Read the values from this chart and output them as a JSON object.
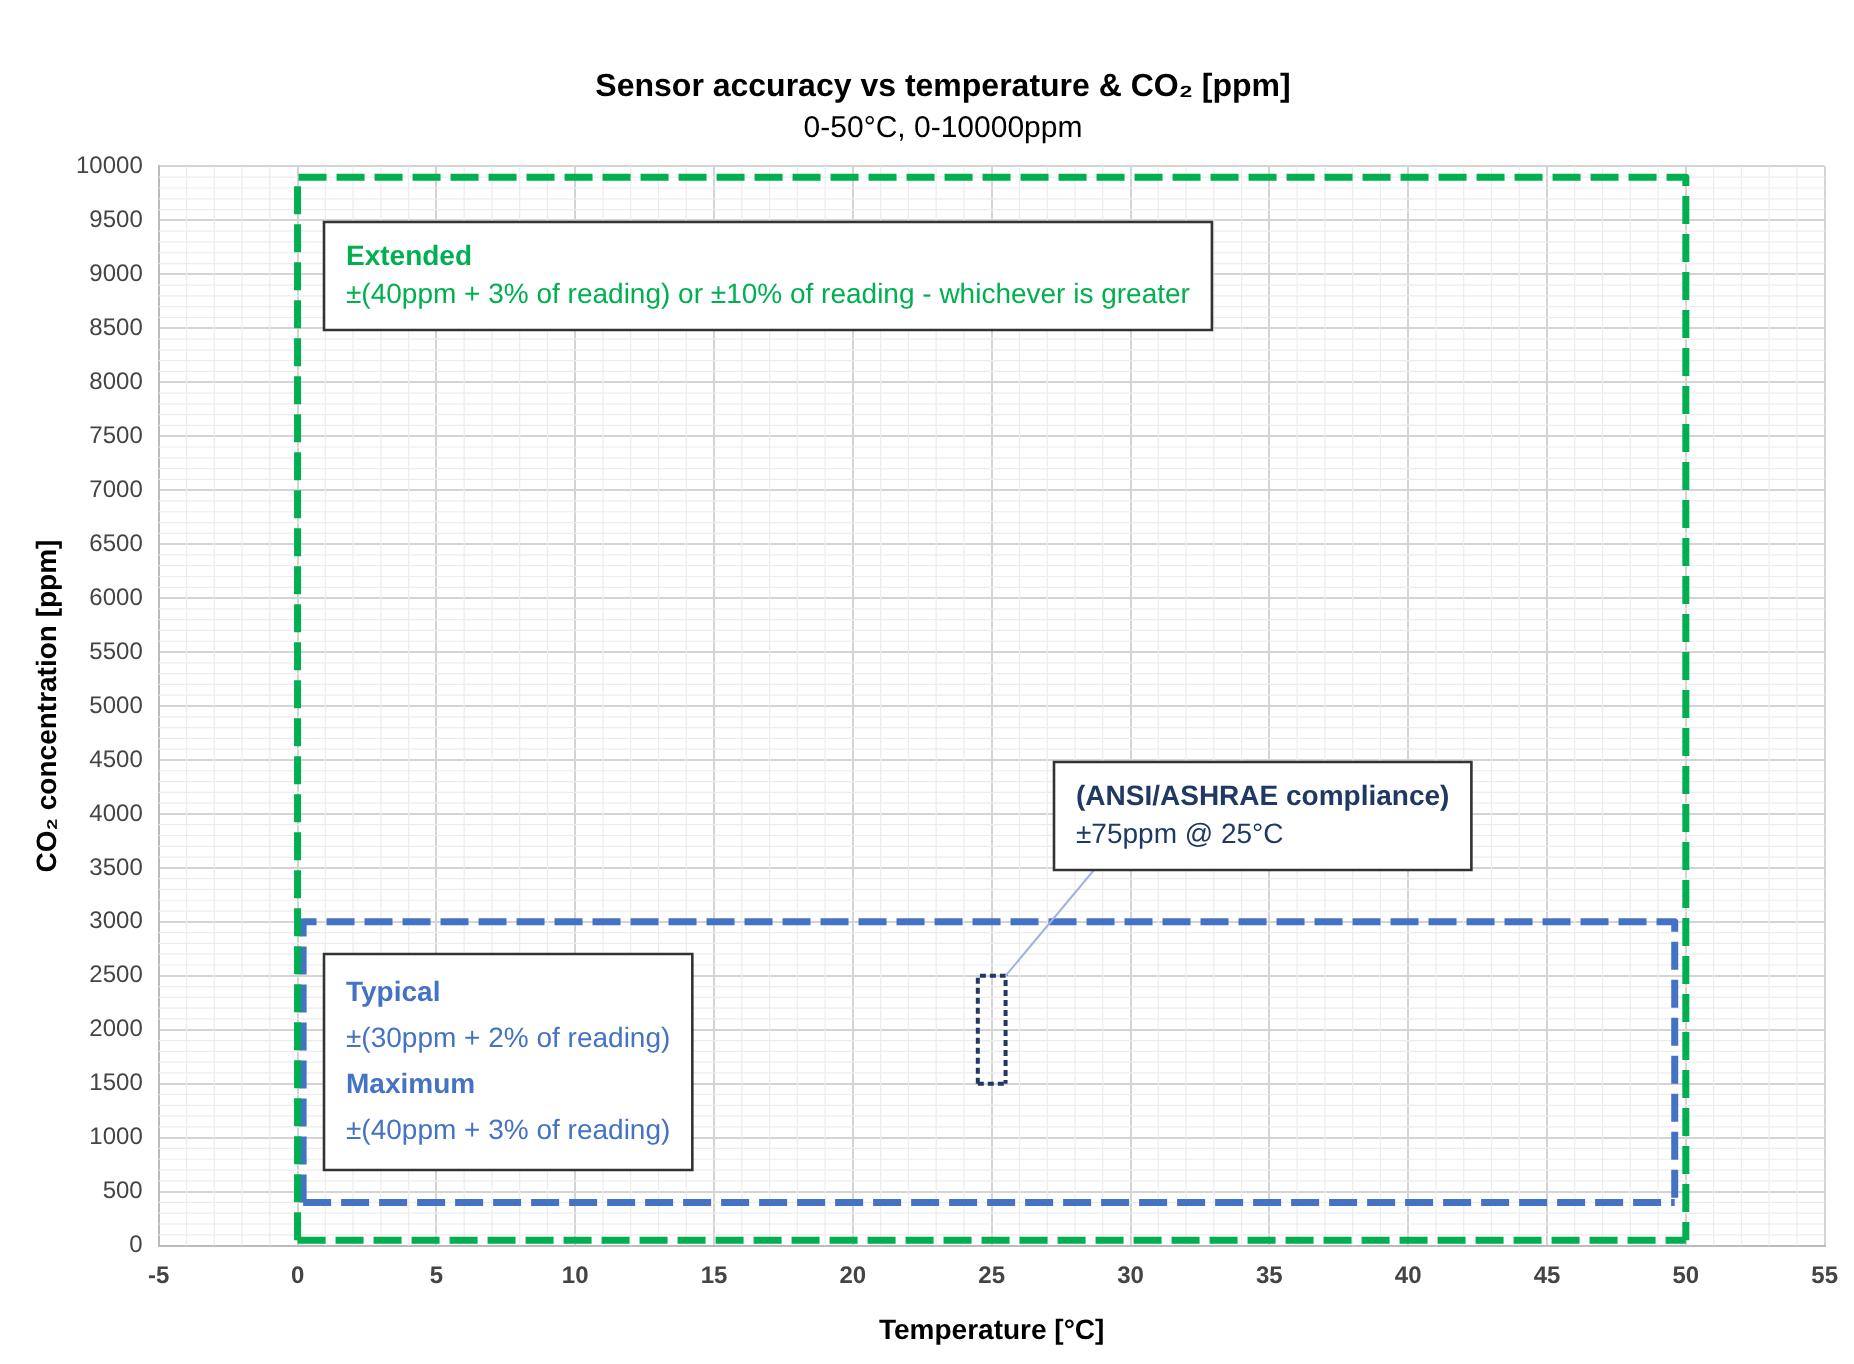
{
  "chart_data": {
    "type": "line",
    "title": "Sensor accuracy vs temperature & CO₂ [ppm]",
    "subtitle": "0-50°C, 0-10000ppm",
    "xlabel": "Temperature [°C]",
    "ylabel": "CO₂ concentration [ppm]",
    "xlim": [
      -5,
      55
    ],
    "xticks": [
      -5,
      0,
      5,
      10,
      15,
      20,
      25,
      30,
      35,
      40,
      45,
      50,
      55
    ],
    "ylim": [
      0,
      10000
    ],
    "yticks": [
      0,
      500,
      1000,
      1500,
      2000,
      2500,
      3000,
      3500,
      4000,
      4500,
      5000,
      5500,
      6000,
      6500,
      7000,
      7500,
      8000,
      8500,
      9000,
      9500,
      10000
    ],
    "grid": true,
    "legend": false,
    "marker": "none",
    "series": [
      {
        "color": "#00b050",
        "line_style": "dashed",
        "x": [
          0,
          0,
          50,
          50
        ],
        "values": [
          50,
          9900,
          9900,
          50
        ]
      },
      {
        "color": "#00b050",
        "line_style": "dashed",
        "x": [
          0,
          50
        ],
        "values": [
          50,
          50
        ]
      },
      {
        "color": "#4472c4",
        "line_style": "dashed",
        "x": [
          0.2,
          0.2,
          49.6,
          49.6
        ],
        "values": [
          400,
          3000,
          3000,
          400
        ]
      },
      {
        "color": "#4472c4",
        "line_style": "dashed",
        "x": [
          0.2,
          49.6
        ],
        "values": [
          400,
          400
        ]
      },
      {
        "color": "#1f3864",
        "line_style": "dotted",
        "x": [
          24.5,
          24.5,
          25.5,
          25.5
        ],
        "values": [
          1500,
          2500,
          2500,
          1500
        ]
      },
      {
        "color": "#1f3864",
        "line_style": "dotted",
        "x": [
          24.5,
          25.5
        ],
        "values": [
          1500,
          1500
        ]
      }
    ],
    "annotations": [
      "Extended\n±(40ppm + 3% of reading) or ±10% of reading - whichever is greater",
      "Typical\n±(30ppm + 2% of reading)\nMaximum\n±(40ppm + 3% of reading)",
      {
        "text": "(ANSI/ASHRAE compliance)\n±75ppm @ 25°C",
        "x": 25.5,
        "y": 2500
      }
    ]
  }
}
